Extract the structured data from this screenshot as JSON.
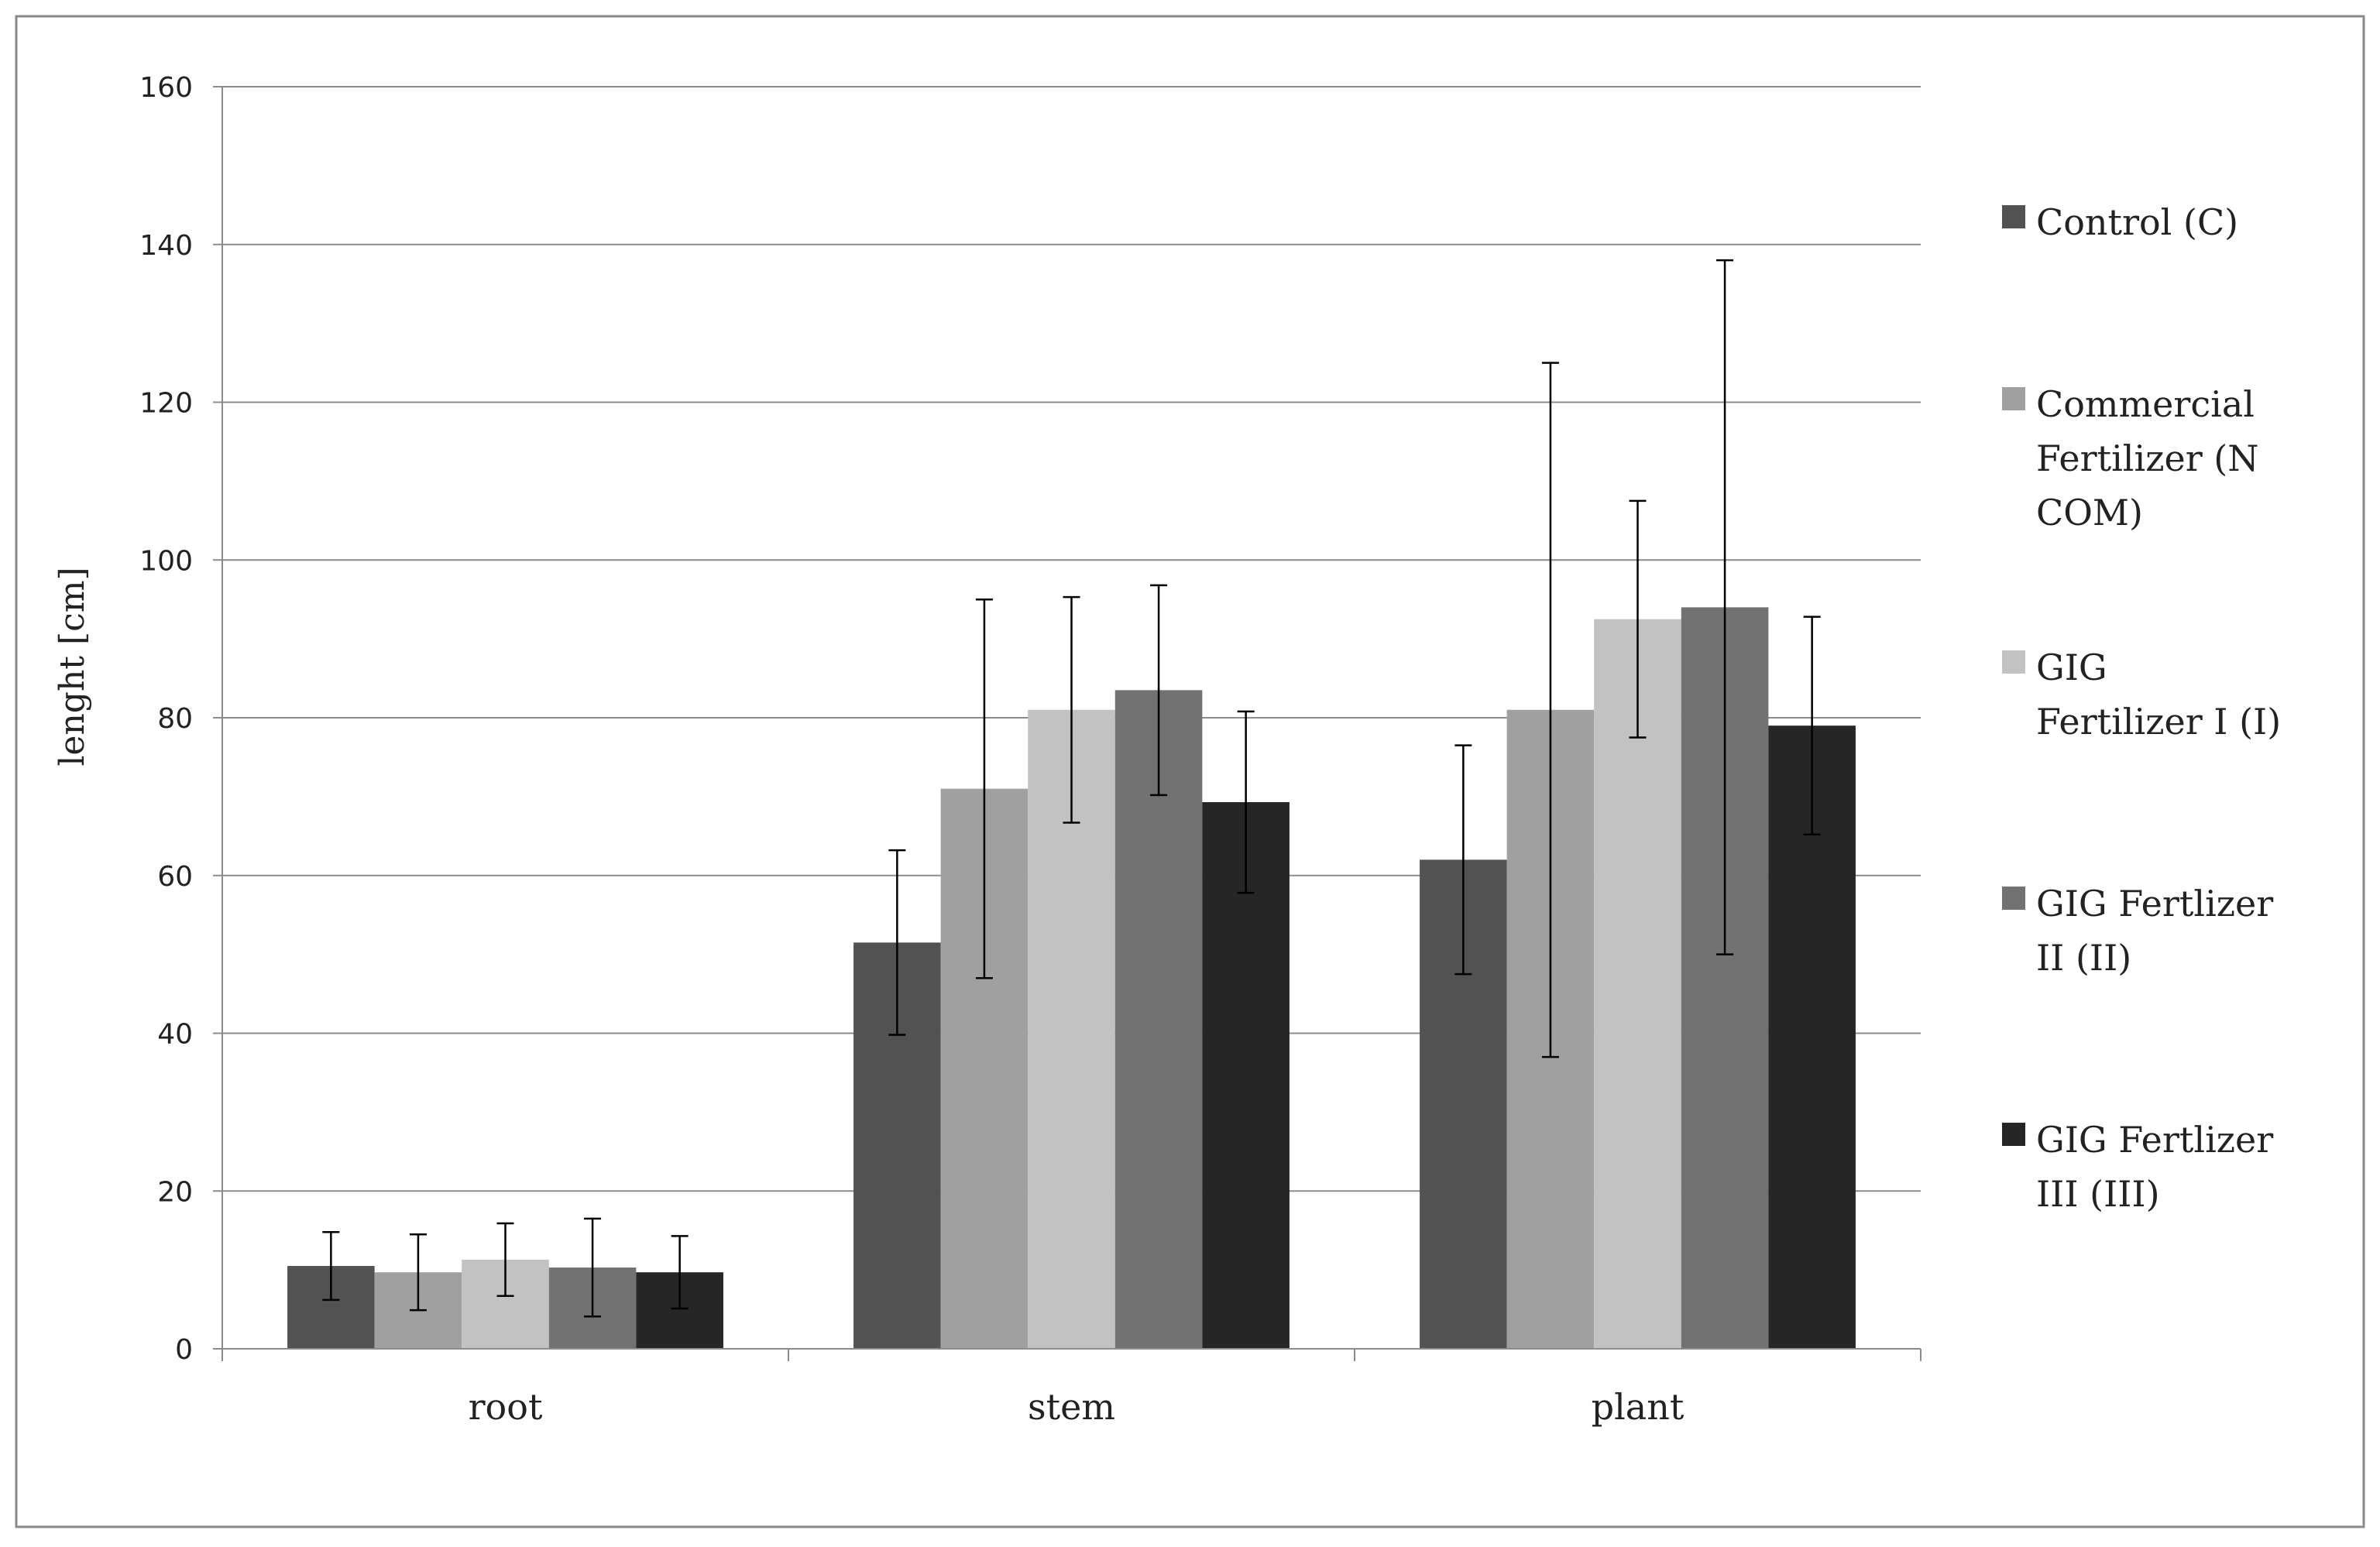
{
  "chart_data": {
    "type": "bar",
    "title": "",
    "xlabel": "",
    "ylabel": "lenght  [cm]",
    "ylim": [
      0,
      160
    ],
    "yticks": [
      0,
      20,
      40,
      60,
      80,
      100,
      120,
      140,
      160
    ],
    "categories": [
      "root",
      "stem",
      "plant"
    ],
    "grid": true,
    "legend_position": "right",
    "series": [
      {
        "name": "Control (C)",
        "legend_lines": [
          "Control (C)"
        ],
        "color": "#525252",
        "values": [
          10.5,
          51.5,
          62.0
        ],
        "error": [
          4.3,
          11.7,
          14.5
        ]
      },
      {
        "name": "Commercial Fertilizer (N COM)",
        "legend_lines": [
          "Commercial",
          "Fertilizer (N",
          "COM)"
        ],
        "color": "#a0a0a0",
        "values": [
          9.7,
          71.0,
          81.0
        ],
        "error": [
          4.8,
          24.0,
          44.0
        ]
      },
      {
        "name": "GIG Fertilizer I (I)",
        "legend_lines": [
          "GIG",
          "Fertilizer I (I)"
        ],
        "color": "#c2c2c2",
        "values": [
          11.3,
          81.0,
          92.5
        ],
        "error": [
          4.6,
          14.3,
          15.0
        ]
      },
      {
        "name": "GIG Fertlizer II (II)",
        "legend_lines": [
          "GIG Fertlizer",
          "II (II)"
        ],
        "color": "#727272",
        "values": [
          10.3,
          83.5,
          94.0
        ],
        "error": [
          6.2,
          13.3,
          44.0
        ]
      },
      {
        "name": "GIG Fertlizer III (III)",
        "legend_lines": [
          "GIG Fertlizer",
          "III (III)"
        ],
        "color": "#262626",
        "values": [
          9.7,
          69.3,
          79.0
        ],
        "error": [
          4.6,
          11.5,
          13.8
        ]
      }
    ]
  }
}
